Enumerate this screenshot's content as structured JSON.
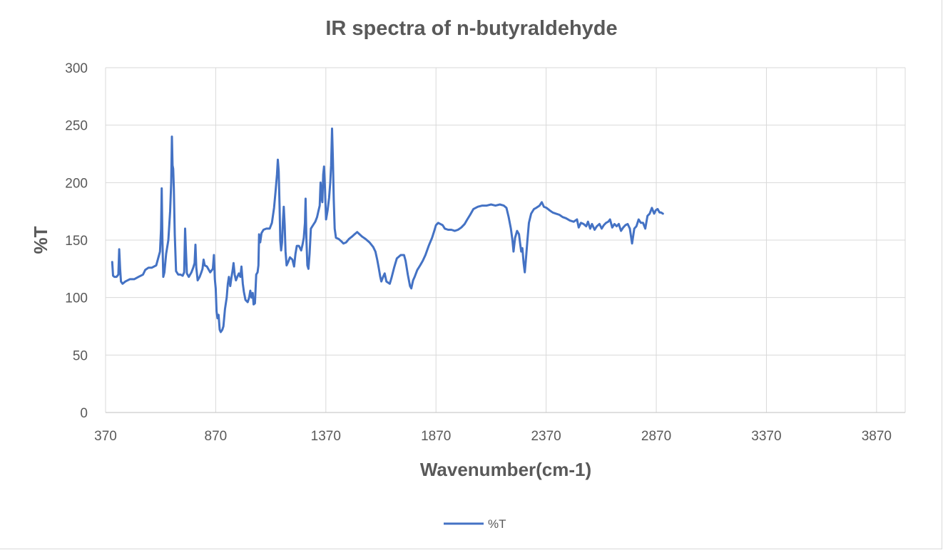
{
  "chart_data": {
    "type": "line",
    "title": "IR spectra of n-butyraldehyde",
    "xlabel": "Wavenumber(cm-1)",
    "ylabel": "%T",
    "xlim": [
      370,
      4000
    ],
    "ylim": [
      0,
      300
    ],
    "x_ticks": [
      370,
      870,
      1370,
      1870,
      2370,
      2870,
      3370,
      3870
    ],
    "y_ticks": [
      0,
      50,
      100,
      150,
      200,
      250,
      300
    ],
    "grid": "both",
    "legend_position": "bottom",
    "series": [
      {
        "name": "%T",
        "color": "#4472C4",
        "points": [
          [
            400,
            131
          ],
          [
            404,
            119
          ],
          [
            410,
            118
          ],
          [
            420,
            118
          ],
          [
            428,
            120
          ],
          [
            432,
            142
          ],
          [
            436,
            125
          ],
          [
            440,
            114
          ],
          [
            447,
            112
          ],
          [
            460,
            114
          ],
          [
            480,
            116
          ],
          [
            500,
            116
          ],
          [
            520,
            118
          ],
          [
            540,
            120
          ],
          [
            550,
            124
          ],
          [
            565,
            126
          ],
          [
            580,
            126
          ],
          [
            600,
            128
          ],
          [
            610,
            135
          ],
          [
            617,
            140
          ],
          [
            622,
            160
          ],
          [
            625,
            195
          ],
          [
            628,
            150
          ],
          [
            632,
            118
          ],
          [
            637,
            122
          ],
          [
            645,
            138
          ],
          [
            655,
            150
          ],
          [
            663,
            175
          ],
          [
            668,
            200
          ],
          [
            671,
            240
          ],
          [
            674,
            215
          ],
          [
            677,
            212
          ],
          [
            680,
            195
          ],
          [
            684,
            155
          ],
          [
            690,
            123
          ],
          [
            700,
            120
          ],
          [
            710,
            120
          ],
          [
            720,
            119
          ],
          [
            727,
            122
          ],
          [
            731,
            160
          ],
          [
            735,
            140
          ],
          [
            739,
            121
          ],
          [
            748,
            118
          ],
          [
            760,
            122
          ],
          [
            768,
            126
          ],
          [
            774,
            130
          ],
          [
            778,
            146
          ],
          [
            782,
            126
          ],
          [
            788,
            115
          ],
          [
            797,
            118
          ],
          [
            805,
            122
          ],
          [
            810,
            125
          ],
          [
            815,
            133
          ],
          [
            820,
            128
          ],
          [
            830,
            127
          ],
          [
            845,
            122
          ],
          [
            857,
            125
          ],
          [
            862,
            137
          ],
          [
            866,
            116
          ],
          [
            870,
            108
          ],
          [
            874,
            88
          ],
          [
            878,
            82
          ],
          [
            883,
            85
          ],
          [
            888,
            72
          ],
          [
            893,
            70
          ],
          [
            900,
            72
          ],
          [
            905,
            75
          ],
          [
            912,
            90
          ],
          [
            920,
            100
          ],
          [
            925,
            112
          ],
          [
            930,
            118
          ],
          [
            936,
            110
          ],
          [
            942,
            118
          ],
          [
            947,
            124
          ],
          [
            951,
            130
          ],
          [
            956,
            120
          ],
          [
            962,
            115
          ],
          [
            968,
            118
          ],
          [
            975,
            121
          ],
          [
            982,
            118
          ],
          [
            987,
            127
          ],
          [
            993,
            112
          ],
          [
            998,
            105
          ],
          [
            1005,
            98
          ],
          [
            1015,
            96
          ],
          [
            1022,
            100
          ],
          [
            1027,
            106
          ],
          [
            1033,
            100
          ],
          [
            1038,
            104
          ],
          [
            1042,
            94
          ],
          [
            1048,
            95
          ],
          [
            1054,
            120
          ],
          [
            1060,
            122
          ],
          [
            1064,
            128
          ],
          [
            1067,
            155
          ],
          [
            1072,
            148
          ],
          [
            1078,
            156
          ],
          [
            1087,
            159
          ],
          [
            1100,
            160
          ],
          [
            1115,
            160
          ],
          [
            1125,
            165
          ],
          [
            1135,
            178
          ],
          [
            1142,
            193
          ],
          [
            1148,
            207
          ],
          [
            1152,
            220
          ],
          [
            1156,
            210
          ],
          [
            1160,
            178
          ],
          [
            1163,
            150
          ],
          [
            1167,
            141
          ],
          [
            1171,
            148
          ],
          [
            1175,
            166
          ],
          [
            1179,
            179
          ],
          [
            1183,
            163
          ],
          [
            1187,
            140
          ],
          [
            1192,
            128
          ],
          [
            1199,
            131
          ],
          [
            1207,
            135
          ],
          [
            1218,
            133
          ],
          [
            1226,
            127
          ],
          [
            1232,
            138
          ],
          [
            1238,
            145
          ],
          [
            1248,
            145
          ],
          [
            1258,
            141
          ],
          [
            1264,
            146
          ],
          [
            1270,
            152
          ],
          [
            1275,
            165
          ],
          [
            1278,
            186
          ],
          [
            1282,
            150
          ],
          [
            1286,
            128
          ],
          [
            1291,
            125
          ],
          [
            1296,
            138
          ],
          [
            1302,
            160
          ],
          [
            1312,
            163
          ],
          [
            1322,
            166
          ],
          [
            1330,
            170
          ],
          [
            1336,
            175
          ],
          [
            1342,
            180
          ],
          [
            1346,
            200
          ],
          [
            1350,
            188
          ],
          [
            1354,
            183
          ],
          [
            1358,
            207
          ],
          [
            1362,
            214
          ],
          [
            1366,
            195
          ],
          [
            1371,
            168
          ],
          [
            1378,
            176
          ],
          [
            1385,
            187
          ],
          [
            1390,
            200
          ],
          [
            1394,
            215
          ],
          [
            1398,
            247
          ],
          [
            1402,
            220
          ],
          [
            1406,
            185
          ],
          [
            1410,
            160
          ],
          [
            1416,
            152
          ],
          [
            1428,
            151
          ],
          [
            1440,
            149
          ],
          [
            1450,
            147
          ],
          [
            1462,
            148
          ],
          [
            1475,
            151
          ],
          [
            1488,
            153
          ],
          [
            1500,
            155
          ],
          [
            1512,
            157
          ],
          [
            1523,
            155
          ],
          [
            1535,
            153
          ],
          [
            1550,
            151
          ],
          [
            1568,
            148
          ],
          [
            1585,
            144
          ],
          [
            1595,
            140
          ],
          [
            1603,
            133
          ],
          [
            1610,
            126
          ],
          [
            1617,
            118
          ],
          [
            1622,
            114
          ],
          [
            1630,
            118
          ],
          [
            1637,
            121
          ],
          [
            1645,
            114
          ],
          [
            1660,
            112
          ],
          [
            1668,
            117
          ],
          [
            1680,
            126
          ],
          [
            1692,
            134
          ],
          [
            1710,
            137
          ],
          [
            1725,
            137
          ],
          [
            1732,
            132
          ],
          [
            1742,
            120
          ],
          [
            1752,
            110
          ],
          [
            1758,
            108
          ],
          [
            1766,
            115
          ],
          [
            1773,
            118
          ],
          [
            1785,
            124
          ],
          [
            1798,
            128
          ],
          [
            1810,
            132
          ],
          [
            1822,
            137
          ],
          [
            1837,
            145
          ],
          [
            1852,
            152
          ],
          [
            1862,
            158
          ],
          [
            1870,
            163
          ],
          [
            1880,
            165
          ],
          [
            1890,
            164
          ],
          [
            1900,
            163
          ],
          [
            1910,
            160
          ],
          [
            1925,
            159
          ],
          [
            1940,
            159
          ],
          [
            1955,
            158
          ],
          [
            1970,
            159
          ],
          [
            1985,
            161
          ],
          [
            2000,
            164
          ],
          [
            2012,
            168
          ],
          [
            2025,
            172
          ],
          [
            2040,
            177
          ],
          [
            2060,
            179
          ],
          [
            2080,
            180
          ],
          [
            2100,
            180
          ],
          [
            2120,
            181
          ],
          [
            2140,
            180
          ],
          [
            2160,
            181
          ],
          [
            2178,
            180
          ],
          [
            2190,
            178
          ],
          [
            2200,
            170
          ],
          [
            2210,
            160
          ],
          [
            2217,
            150
          ],
          [
            2222,
            140
          ],
          [
            2229,
            152
          ],
          [
            2238,
            158
          ],
          [
            2247,
            155
          ],
          [
            2252,
            147
          ],
          [
            2257,
            140
          ],
          [
            2262,
            143
          ],
          [
            2268,
            130
          ],
          [
            2273,
            122
          ],
          [
            2279,
            135
          ],
          [
            2285,
            150
          ],
          [
            2292,
            165
          ],
          [
            2302,
            173
          ],
          [
            2315,
            177
          ],
          [
            2325,
            178
          ],
          [
            2340,
            180
          ],
          [
            2350,
            183
          ],
          [
            2360,
            179
          ],
          [
            2372,
            178
          ],
          [
            2385,
            176
          ],
          [
            2400,
            174
          ],
          [
            2415,
            173
          ],
          [
            2430,
            172
          ],
          [
            2445,
            170
          ],
          [
            2460,
            169
          ],
          [
            2478,
            167
          ],
          [
            2495,
            166
          ],
          [
            2510,
            168
          ],
          [
            2518,
            161
          ],
          [
            2528,
            165
          ],
          [
            2540,
            164
          ],
          [
            2552,
            162
          ],
          [
            2560,
            166
          ],
          [
            2570,
            160
          ],
          [
            2578,
            164
          ],
          [
            2590,
            159
          ],
          [
            2600,
            162
          ],
          [
            2612,
            164
          ],
          [
            2622,
            160
          ],
          [
            2632,
            163
          ],
          [
            2642,
            165
          ],
          [
            2652,
            166
          ],
          [
            2660,
            168
          ],
          [
            2670,
            161
          ],
          [
            2680,
            164
          ],
          [
            2690,
            162
          ],
          [
            2700,
            164
          ],
          [
            2710,
            158
          ],
          [
            2720,
            161
          ],
          [
            2730,
            163
          ],
          [
            2740,
            164
          ],
          [
            2750,
            160
          ],
          [
            2760,
            147
          ],
          [
            2770,
            160
          ],
          [
            2780,
            162
          ],
          [
            2790,
            168
          ],
          [
            2800,
            165
          ],
          [
            2810,
            165
          ],
          [
            2820,
            160
          ],
          [
            2830,
            171
          ],
          [
            2840,
            173
          ],
          [
            2850,
            178
          ],
          [
            2860,
            173
          ],
          [
            2868,
            176
          ],
          [
            2876,
            177
          ],
          [
            2885,
            174
          ],
          [
            2892,
            174
          ],
          [
            2900,
            173
          ]
        ]
      }
    ]
  }
}
